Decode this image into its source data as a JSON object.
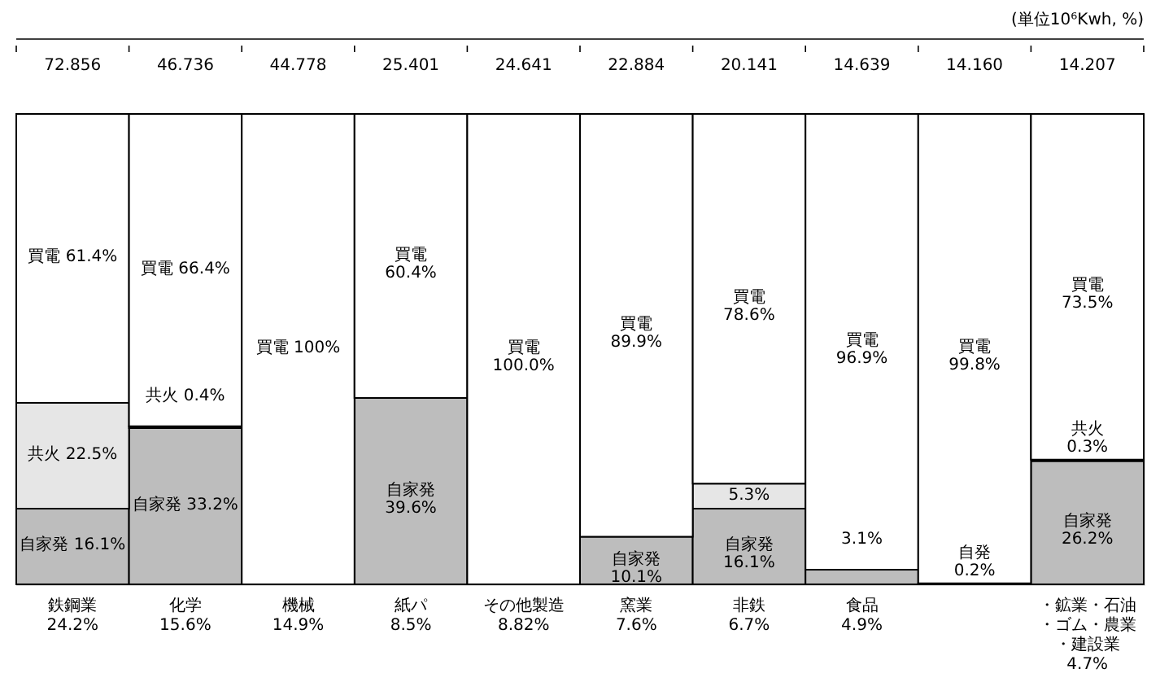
{
  "chart_data": {
    "type": "bar",
    "stacked": true,
    "legend": false,
    "annotations": [
      "(単位10⁶Kwh, %)",
      "72.856",
      "46.736",
      "44.778",
      "25.401",
      "24.641",
      "22.884",
      "20.141",
      "14.639",
      "14.160",
      "14.207"
    ],
    "categories": [
      "鉄鋼業\n24.2%",
      "化学\n15.6%",
      "機械\n14.9%",
      "紙パ\n8.5%",
      "その他製造\n8.82%",
      "窯業\n7.6%",
      "非鉄\n6.7%",
      "食品\n4.9%",
      null,
      "・鉱業・石油・ゴム・農業・建設業\n4.7%"
    ],
    "series": [
      {
        "color": "#bdbdbd",
        "values": [
          16.1,
          33.2,
          null,
          39.6,
          null,
          10.1,
          16.1,
          3.1,
          0.2,
          26.2
        ],
        "value_labels": [
          "自家発 16.1%",
          "自家発 33.2%",
          null,
          "自家発\n39.6%",
          null,
          "自家発\n10.1%",
          "自家発\n16.1%",
          "3.1%",
          "自発\n0.2%",
          "自家発\n26.2%"
        ]
      },
      {
        "color": "#e6e6e6",
        "values": [
          22.5,
          0.4,
          null,
          null,
          null,
          null,
          5.3,
          null,
          null,
          0.3
        ],
        "value_labels": [
          "共火 22.5%",
          "共火 0.4%",
          null,
          null,
          null,
          null,
          "5.3%",
          null,
          null,
          "共火\n0.3%"
        ]
      },
      {
        "color": "#ffffff",
        "values": [
          61.4,
          66.4,
          100,
          60.4,
          100.0,
          89.9,
          78.6,
          96.9,
          99.8,
          73.5
        ],
        "value_labels": [
          "買電 61.4%",
          "買電 66.4%",
          "買電 100%",
          "買電\n60.4%",
          "買電\n100.0%",
          "買電\n89.9%",
          "買電\n78.6%",
          "買電\n96.9%",
          "買電\n99.8%",
          "買電\n73.5%"
        ]
      }
    ]
  }
}
